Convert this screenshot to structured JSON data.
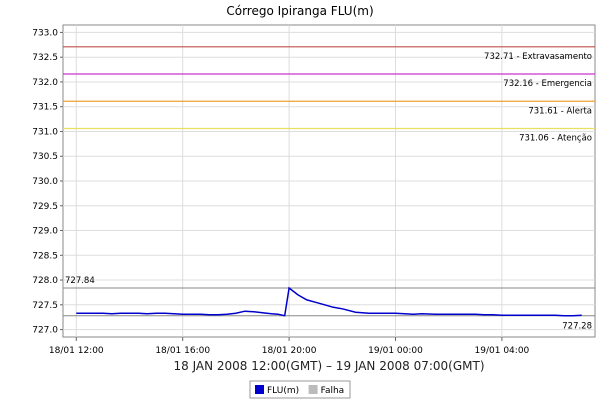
{
  "chart_data": {
    "type": "line",
    "title": "Córrego Ipiranga FLU(m)",
    "xlabel": "18 JAN 2008 12:00(GMT) – 19 JAN 2008 07:00(GMT)",
    "ylabel": "",
    "x_range": [
      "2008-01-18 11:30",
      "2008-01-19 07:30"
    ],
    "ylim": [
      726.85,
      733.15
    ],
    "y_ticks": [
      727.0,
      727.5,
      728.0,
      728.5,
      729.0,
      729.5,
      730.0,
      730.5,
      731.0,
      731.5,
      732.0,
      732.5,
      733.0
    ],
    "y_tick_labels": [
      "727.0",
      "727.5",
      "728.0",
      "728.5",
      "729.0",
      "729.5",
      "730.0",
      "730.5",
      "731.0",
      "731.5",
      "732.0",
      "732.5",
      "733.0"
    ],
    "x_ticks": [
      "2008-01-18 12:00",
      "2008-01-18 16:00",
      "2008-01-18 20:00",
      "2008-01-19 00:00",
      "2008-01-19 04:00"
    ],
    "x_tick_labels": [
      "18/01 12:00",
      "18/01 16:00",
      "18/01 20:00",
      "19/01 00:00",
      "19/01 04:00"
    ],
    "grid": true,
    "legend_position": "bottom-center",
    "thresholds": [
      {
        "value": 732.71,
        "label": "732.71 - Extravasamento",
        "color": "#c0504d"
      },
      {
        "value": 732.16,
        "label": "732.16 - Emergencia",
        "color": "#cc33cc"
      },
      {
        "value": 731.61,
        "label": "731.61 - Alerta",
        "color": "#f0a030"
      },
      {
        "value": 731.06,
        "label": "731.06 - Atenção",
        "color": "#e8e060"
      }
    ],
    "reference_lines": [
      {
        "value": 727.84,
        "label": "727.84",
        "label_side": "left",
        "color": "#888888"
      },
      {
        "value": 727.28,
        "label": "727.28",
        "label_side": "right",
        "color": "#888888"
      }
    ],
    "series": [
      {
        "name": "FLU(m)",
        "color": "#0000cc",
        "x": [
          "2008-01-18 12:00",
          "2008-01-18 12:20",
          "2008-01-18 12:40",
          "2008-01-18 13:00",
          "2008-01-18 13:20",
          "2008-01-18 13:40",
          "2008-01-18 14:00",
          "2008-01-18 14:20",
          "2008-01-18 14:40",
          "2008-01-18 15:00",
          "2008-01-18 15:20",
          "2008-01-18 15:40",
          "2008-01-18 16:00",
          "2008-01-18 16:20",
          "2008-01-18 16:40",
          "2008-01-18 17:00",
          "2008-01-18 17:20",
          "2008-01-18 17:40",
          "2008-01-18 18:00",
          "2008-01-18 18:20",
          "2008-01-18 18:40",
          "2008-01-18 19:00",
          "2008-01-18 19:10",
          "2008-01-18 19:20",
          "2008-01-18 19:35",
          "2008-01-18 19:50",
          "2008-01-18 20:00",
          "2008-01-18 20:20",
          "2008-01-18 20:40",
          "2008-01-18 21:00",
          "2008-01-18 21:20",
          "2008-01-18 21:40",
          "2008-01-18 22:00",
          "2008-01-18 22:30",
          "2008-01-18 23:00",
          "2008-01-18 23:30",
          "2008-01-19 00:00",
          "2008-01-19 00:20",
          "2008-01-19 00:40",
          "2008-01-19 01:00",
          "2008-01-19 01:30",
          "2008-01-19 02:00",
          "2008-01-19 02:30",
          "2008-01-19 03:00",
          "2008-01-19 03:20",
          "2008-01-19 03:40",
          "2008-01-19 04:00",
          "2008-01-19 04:30",
          "2008-01-19 05:00",
          "2008-01-19 05:30",
          "2008-01-19 06:00",
          "2008-01-19 06:20",
          "2008-01-19 06:40",
          "2008-01-19 07:00"
        ],
        "y": [
          727.33,
          727.33,
          727.33,
          727.33,
          727.32,
          727.33,
          727.33,
          727.33,
          727.32,
          727.33,
          727.33,
          727.32,
          727.31,
          727.31,
          727.31,
          727.3,
          727.3,
          727.31,
          727.33,
          727.37,
          727.36,
          727.34,
          727.33,
          727.32,
          727.31,
          727.28,
          727.84,
          727.7,
          727.6,
          727.55,
          727.5,
          727.45,
          727.42,
          727.35,
          727.33,
          727.33,
          727.33,
          727.32,
          727.31,
          727.32,
          727.31,
          727.31,
          727.31,
          727.31,
          727.3,
          727.3,
          727.29,
          727.29,
          727.29,
          727.29,
          727.29,
          727.28,
          727.28,
          727.29
        ]
      },
      {
        "name": "Falha",
        "color": "#bbbbbb",
        "x": [],
        "y": []
      }
    ]
  }
}
